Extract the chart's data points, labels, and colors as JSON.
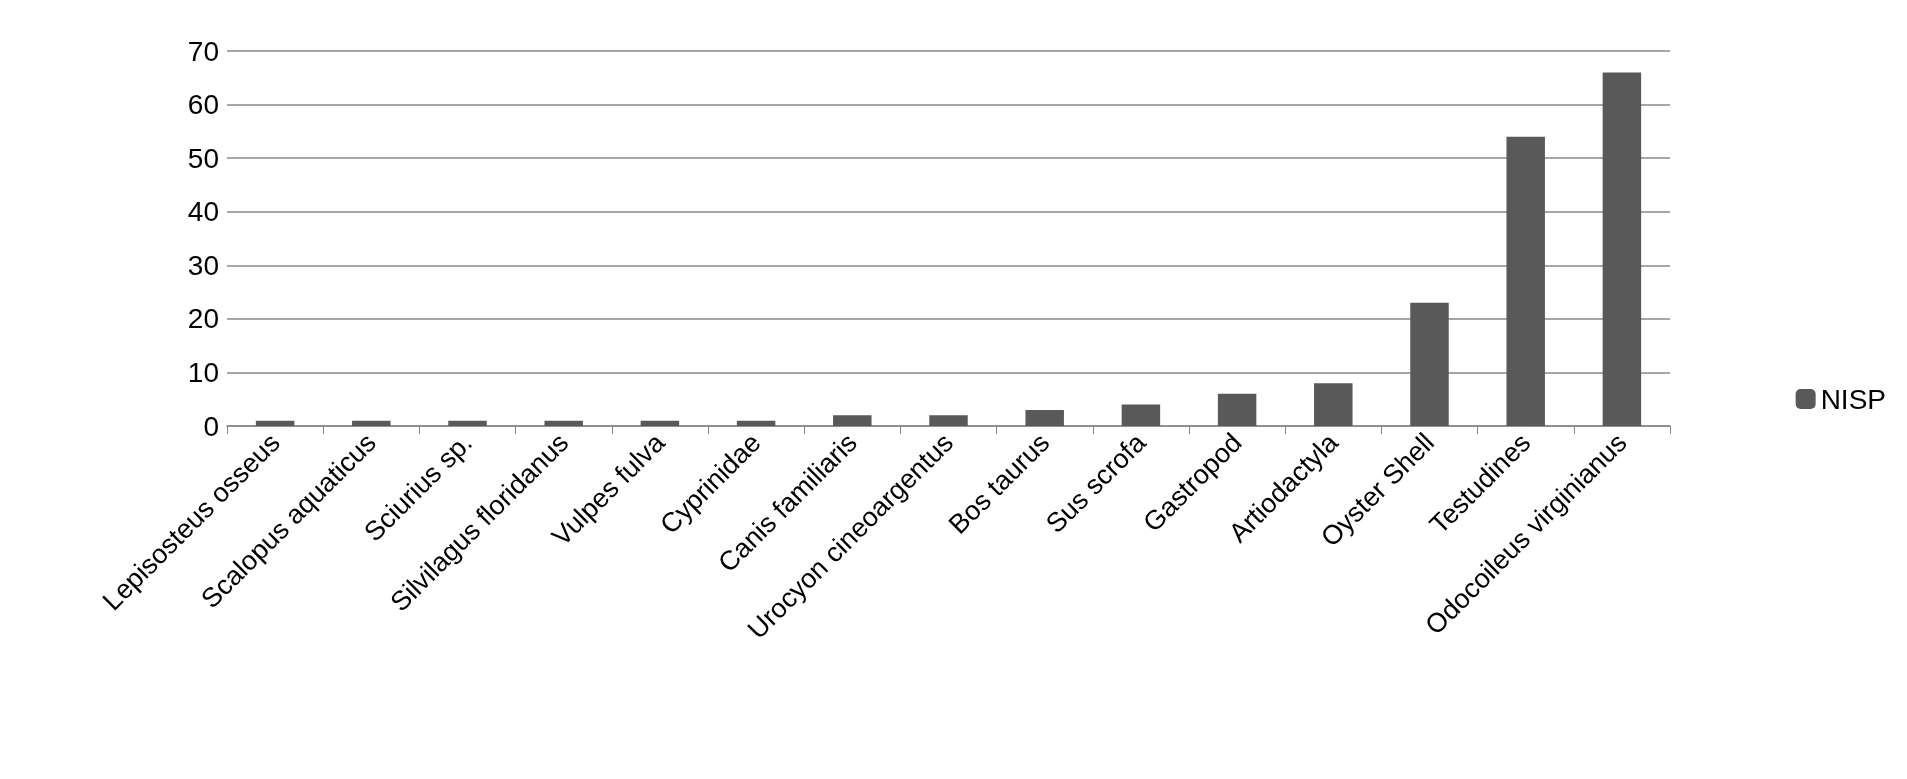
{
  "chart_data": {
    "type": "bar",
    "categories": [
      "Lepisosteus osseus",
      "Scalopus aquaticus",
      "Sciurius sp.",
      "Silvilagus floridanus",
      "Vulpes fulva",
      "Cyprinidae",
      "Canis familiaris",
      "Urocyon cineoargentus",
      "Bos taurus",
      "Sus scrofa",
      "Gastropod",
      "Artiodactyla",
      "Oyster Shell",
      "Testudines",
      "Odocoileus virginianus"
    ],
    "series": [
      {
        "name": "NISP",
        "color": "#595959",
        "values": [
          1,
          1,
          1,
          1,
          1,
          1,
          2,
          2,
          3,
          4,
          6,
          8,
          23,
          54,
          66
        ]
      }
    ],
    "ylim": [
      0,
      70
    ],
    "yticks": [
      0,
      10,
      20,
      30,
      40,
      50,
      60,
      70
    ],
    "grid": "y",
    "legend": "right"
  }
}
